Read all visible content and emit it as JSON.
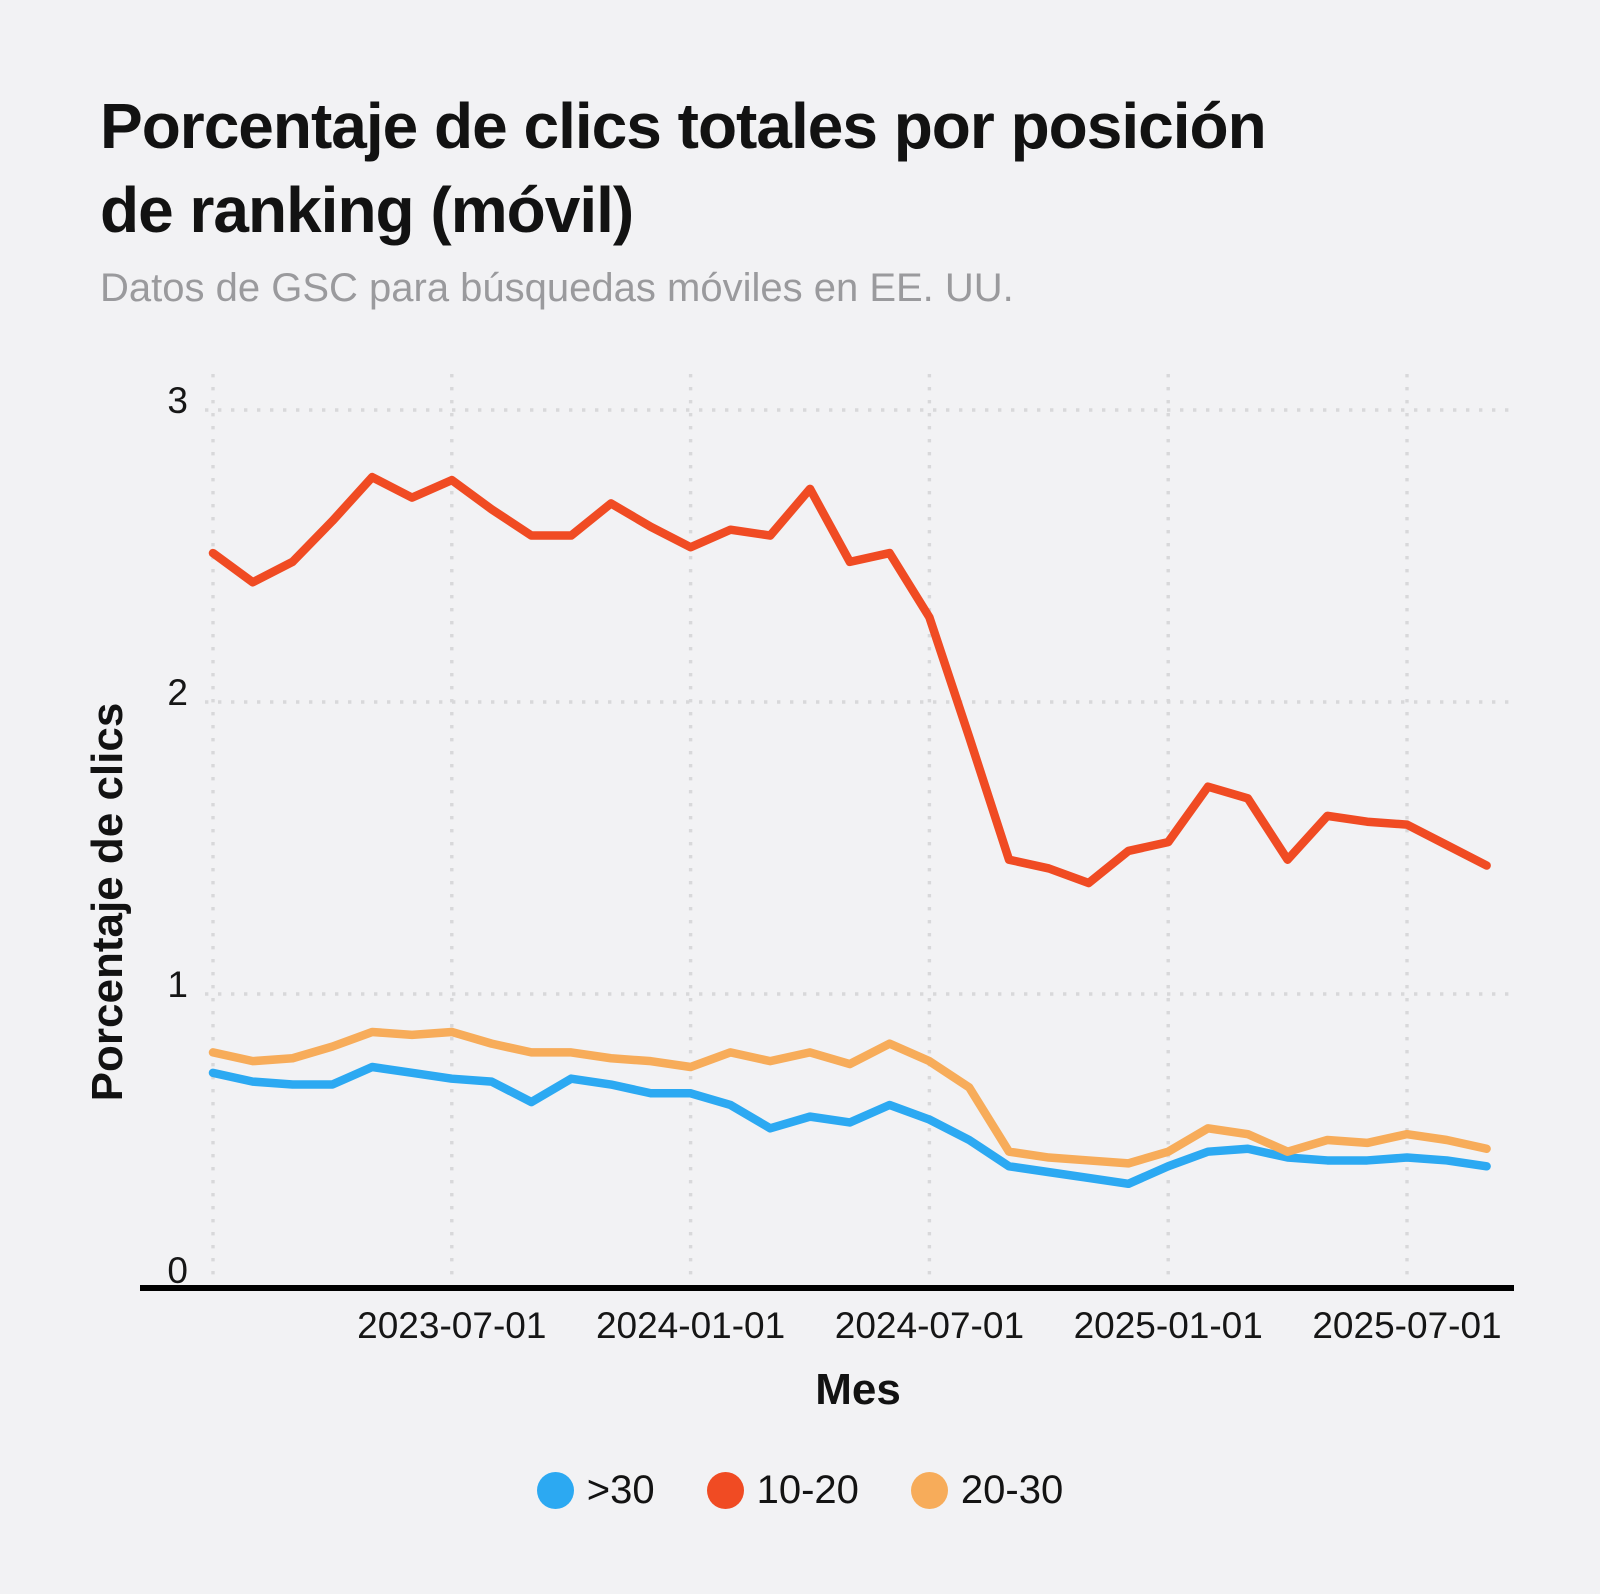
{
  "header": {
    "title_line1": "Porcentaje de clics totales por posición",
    "title_line2": "de ranking (móvil)",
    "subtitle": "Datos de GSC para búsquedas móviles en EE. UU."
  },
  "chart_data": {
    "type": "line",
    "title": "Porcentaje de clics totales por posición de ranking (móvil)",
    "subtitle": "Datos de GSC para búsquedas móviles en EE. UU.",
    "xlabel": "Mes",
    "ylabel": "Porcentaje de clics",
    "x": [
      "2023-01",
      "2023-02",
      "2023-03",
      "2023-04",
      "2023-05",
      "2023-06",
      "2023-07",
      "2023-08",
      "2023-09",
      "2023-10",
      "2023-11",
      "2023-12",
      "2024-01",
      "2024-02",
      "2024-03",
      "2024-04",
      "2024-05",
      "2024-06",
      "2024-07",
      "2024-08",
      "2024-09",
      "2024-10",
      "2024-11",
      "2024-12",
      "2025-01",
      "2025-02",
      "2025-03",
      "2025-04",
      "2025-05",
      "2025-06",
      "2025-07",
      "2025-08",
      "2025-09"
    ],
    "x_ticks": [
      {
        "index": 6,
        "label": "2023-07-01"
      },
      {
        "index": 12,
        "label": "2024-01-01"
      },
      {
        "index": 18,
        "label": "2024-07-01"
      },
      {
        "index": 24,
        "label": "2025-01-01"
      },
      {
        "index": 30,
        "label": "2025-07-01"
      }
    ],
    "y_ticks": [
      0,
      1,
      2,
      3
    ],
    "ylim": [
      0,
      3.1
    ],
    "grid": "dotted",
    "legend_position": "bottom",
    "series": [
      {
        "name": ">30",
        "color": "#2CA9F2",
        "values": [
          0.73,
          0.7,
          0.69,
          0.69,
          0.75,
          0.73,
          0.71,
          0.7,
          0.63,
          0.71,
          0.69,
          0.66,
          0.66,
          0.62,
          0.54,
          0.58,
          0.56,
          0.62,
          0.57,
          0.5,
          0.41,
          0.39,
          0.37,
          0.35,
          0.41,
          0.46,
          0.47,
          0.44,
          0.43,
          0.43,
          0.44,
          0.43,
          0.41
        ]
      },
      {
        "name": "10-20",
        "color": "#F04B23",
        "values": [
          2.51,
          2.41,
          2.48,
          2.62,
          2.77,
          2.7,
          2.76,
          2.66,
          2.57,
          2.57,
          2.68,
          2.6,
          2.53,
          2.59,
          2.57,
          2.73,
          2.48,
          2.51,
          2.29,
          1.88,
          1.46,
          1.43,
          1.38,
          1.49,
          1.52,
          1.71,
          1.67,
          1.46,
          1.61,
          1.59,
          1.58,
          1.51,
          1.44
        ]
      },
      {
        "name": "20-30",
        "color": "#F7AC5A",
        "values": [
          0.8,
          0.77,
          0.78,
          0.82,
          0.87,
          0.86,
          0.87,
          0.83,
          0.8,
          0.8,
          0.78,
          0.77,
          0.75,
          0.8,
          0.77,
          0.8,
          0.76,
          0.83,
          0.77,
          0.68,
          0.46,
          0.44,
          0.43,
          0.42,
          0.46,
          0.54,
          0.52,
          0.46,
          0.5,
          0.49,
          0.52,
          0.5,
          0.47
        ]
      }
    ]
  }
}
